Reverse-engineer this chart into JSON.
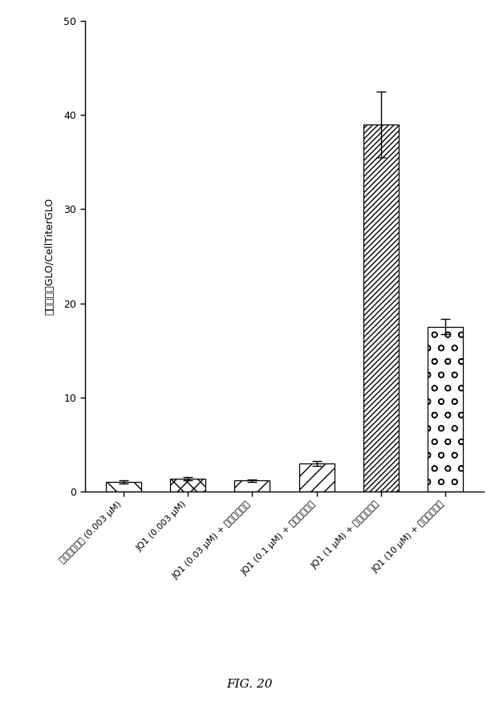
{
  "categories": [
    "ジナシクリブ (0.003 μM)",
    "JQ1 (0.003 μM)",
    "JQ1 (0.03 μM) + ジナシクリブ",
    "JQ1 (0.1 μM) + ジナシクリブ",
    "JQ1 (1 μM) + ジナシクリブ",
    "JQ1 (10 μM) + ジナシクリブ"
  ],
  "values": [
    1.0,
    1.35,
    1.15,
    3.0,
    39.0,
    17.5
  ],
  "errors": [
    0.15,
    0.2,
    0.1,
    0.25,
    3.5,
    0.8
  ],
  "ylabel": "カスパーゼGLO/CellTiterGLO",
  "ylim": [
    0,
    50
  ],
  "yticks": [
    0,
    10,
    20,
    30,
    40,
    50
  ],
  "figure_label": "FIG. 20",
  "background_color": "#ffffff",
  "bar_edge_color": "#000000",
  "bar_width": 0.55
}
